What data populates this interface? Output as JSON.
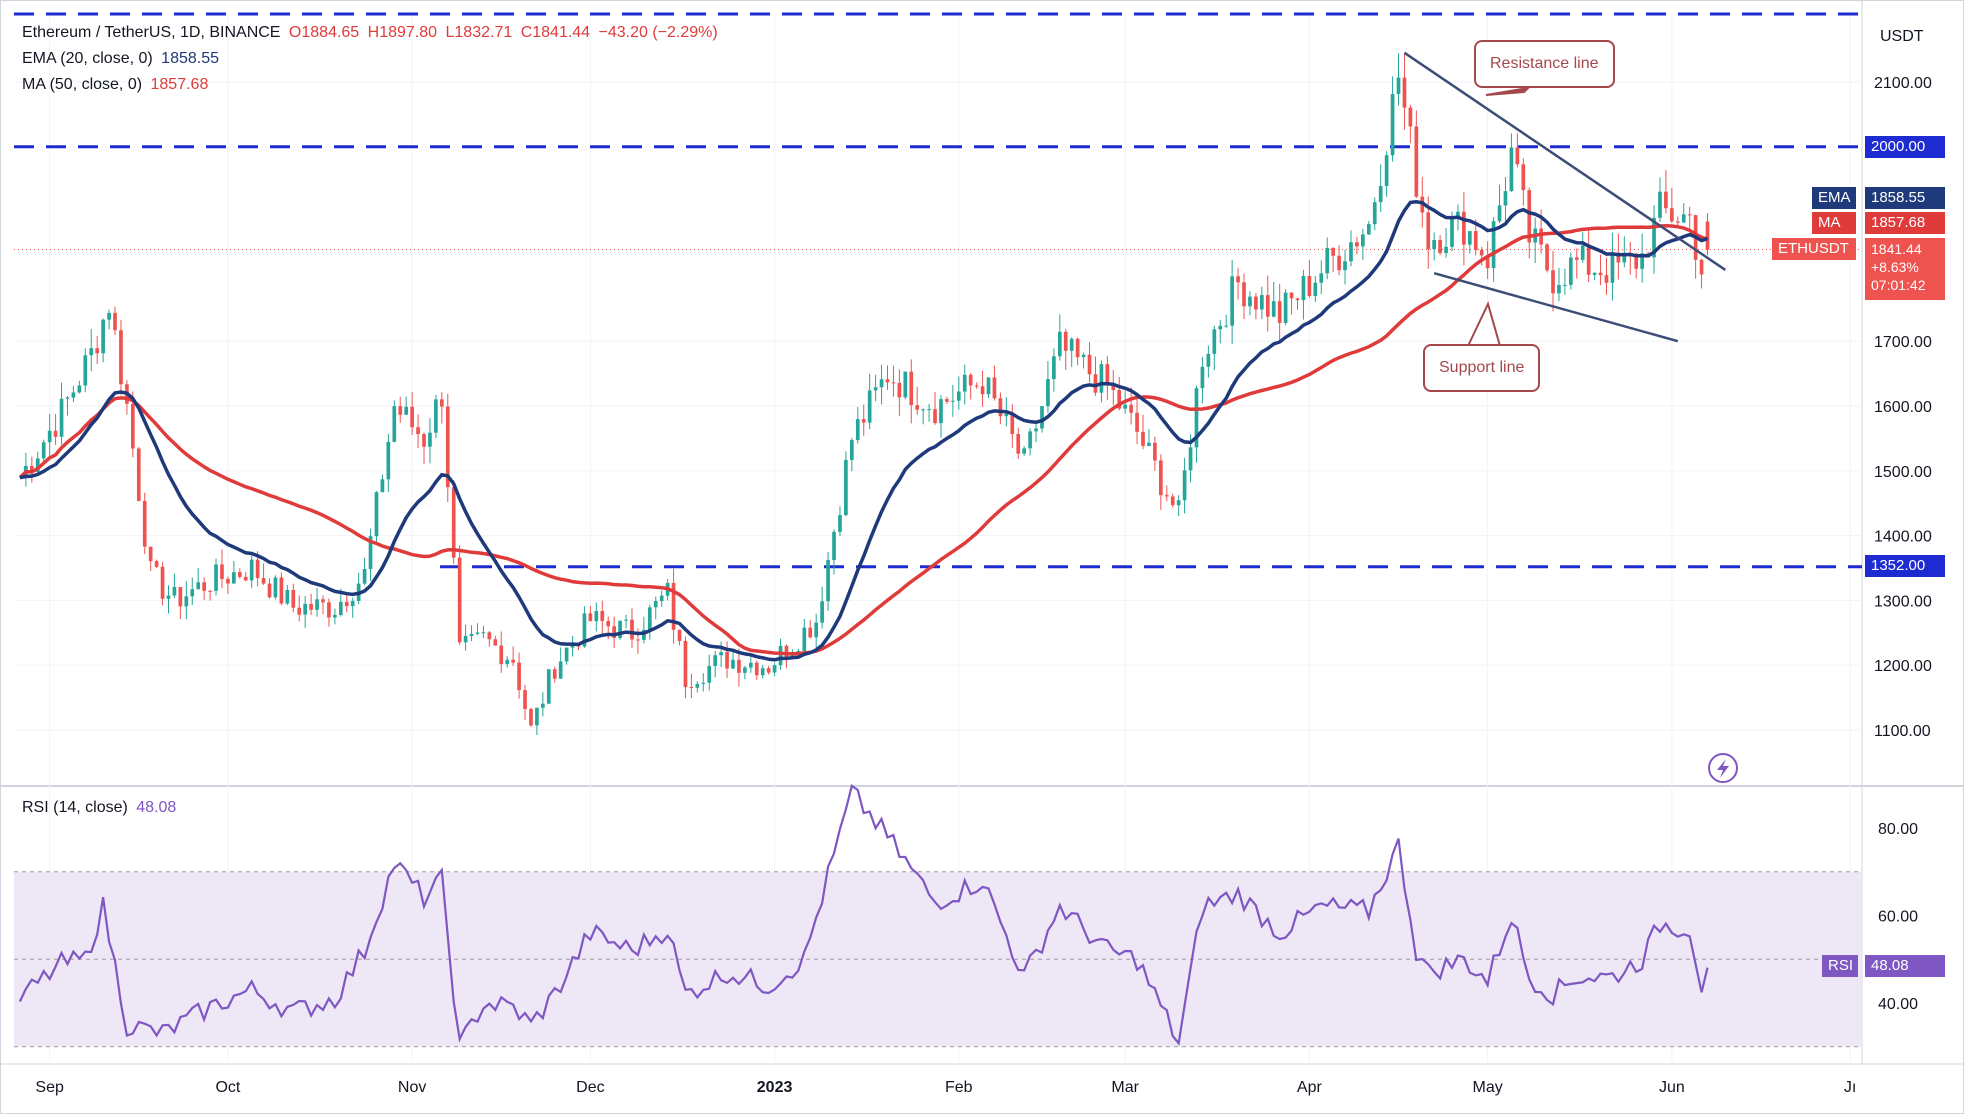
{
  "header": {
    "symbol_line": "Ethereum / TetherUS, 1D, BINANCE",
    "open": "O1884.65",
    "high": "H1897.80",
    "low": "L1832.71",
    "close": "C1841.44",
    "change": "−43.20 (−2.29%)",
    "ema_label": "EMA (20, close, 0)",
    "ema_value": "1858.55",
    "ma_label": "MA (50, close, 0)",
    "ma_value": "1857.68",
    "rsi_label": "RSI (14, close)",
    "rsi_value": "48.08"
  },
  "price_axis": {
    "currency": "USDT",
    "ticks": [
      "2100.00",
      "1700.00",
      "1600.00",
      "1500.00",
      "1400.00",
      "1300.00",
      "1200.00",
      "1100.00"
    ]
  },
  "rsi_axis": {
    "ticks": [
      "80.00",
      "60.00",
      "40.00"
    ]
  },
  "time_axis": {
    "labels": [
      "Sep",
      "Oct",
      "Nov",
      "Dec",
      "2023",
      "Feb",
      "Mar",
      "Apr",
      "May",
      "Jun",
      "Jı"
    ]
  },
  "tags": {
    "resistance_level": "2000.00",
    "support_level": "1352.00",
    "ema_name": "EMA",
    "ema_value": "1858.55",
    "ma_name": "MA",
    "ma_value": "1857.68",
    "symbol": "ETHUSDT",
    "price": "1841.44",
    "pct": "+8.63%",
    "countdown": "07:01:42",
    "rsi_name": "RSI",
    "rsi_value": "48.08"
  },
  "annotations": {
    "resistance": "Resistance line",
    "support": "Support line"
  },
  "colors": {
    "up": "#26a69a",
    "down": "#ef5350",
    "ema": "#1f3a7a",
    "ma": "#e03b3b",
    "level_line": "#1e2bd0",
    "rsi_line": "#7e57c2",
    "rsi_band": "#ede7f6",
    "callout": "#a4484c"
  },
  "chart_data": [
    {
      "type": "candlestick",
      "title": "Ethereum / TetherUS, 1D, BINANCE",
      "ylabel": "USDT",
      "ylim": [
        1000,
        2250
      ],
      "horizontal_levels": [
        2000,
        1352
      ],
      "series_overlays": [
        "EMA (20, close, 0)",
        "MA (50, close, 0)"
      ],
      "last": {
        "open": 1884.65,
        "high": 1897.8,
        "low": 1832.71,
        "close": 1841.44,
        "ema20": 1858.55,
        "ma50": 1857.68
      },
      "trendlines": {
        "resistance": [
          [
            "2023-04-17",
            2145
          ],
          [
            "2023-06-10",
            1810
          ]
        ],
        "support": [
          [
            "2023-04-22",
            1805
          ],
          [
            "2023-06-02",
            1700
          ]
        ]
      },
      "close_path": [
        [
          "2022-08-27",
          1490
        ],
        [
          "2022-09-03",
          1590
        ],
        [
          "2022-09-08",
          1680
        ],
        [
          "2022-09-11",
          1760
        ],
        [
          "2022-09-14",
          1600
        ],
        [
          "2022-09-18",
          1340
        ],
        [
          "2022-09-22",
          1300
        ],
        [
          "2022-09-28",
          1330
        ],
        [
          "2022-10-05",
          1350
        ],
        [
          "2022-10-12",
          1290
        ],
        [
          "2022-10-19",
          1290
        ],
        [
          "2022-10-24",
          1340
        ],
        [
          "2022-10-29",
          1600
        ],
        [
          "2022-11-03",
          1550
        ],
        [
          "2022-11-06",
          1620
        ],
        [
          "2022-11-09",
          1220
        ],
        [
          "2022-11-13",
          1240
        ],
        [
          "2022-11-18",
          1210
        ],
        [
          "2022-11-21",
          1100
        ],
        [
          "2022-11-25",
          1200
        ],
        [
          "2022-12-01",
          1270
        ],
        [
          "2022-12-08",
          1250
        ],
        [
          "2022-12-14",
          1310
        ],
        [
          "2022-12-17",
          1180
        ],
        [
          "2022-12-24",
          1210
        ],
        [
          "2022-12-31",
          1200
        ],
        [
          "2023-01-08",
          1270
        ],
        [
          "2023-01-14",
          1550
        ],
        [
          "2023-01-20",
          1650
        ],
        [
          "2023-01-28",
          1600
        ],
        [
          "2023-02-05",
          1640
        ],
        [
          "2023-02-12",
          1510
        ],
        [
          "2023-02-18",
          1690
        ],
        [
          "2023-02-26",
          1630
        ],
        [
          "2023-03-03",
          1560
        ],
        [
          "2023-03-10",
          1430
        ],
        [
          "2023-03-14",
          1680
        ],
        [
          "2023-03-20",
          1790
        ],
        [
          "2023-03-27",
          1740
        ],
        [
          "2023-04-03",
          1810
        ],
        [
          "2023-04-11",
          1880
        ],
        [
          "2023-04-16",
          2110
        ],
        [
          "2023-04-19",
          1950
        ],
        [
          "2023-04-21",
          1860
        ],
        [
          "2023-04-27",
          1880
        ],
        [
          "2023-05-01",
          1830
        ],
        [
          "2023-05-05",
          1990
        ],
        [
          "2023-05-08",
          1860
        ],
        [
          "2023-05-12",
          1800
        ],
        [
          "2023-05-16",
          1820
        ],
        [
          "2023-05-22",
          1810
        ],
        [
          "2023-05-27",
          1830
        ],
        [
          "2023-05-30",
          1900
        ],
        [
          "2023-06-04",
          1890
        ],
        [
          "2023-06-06",
          1810
        ],
        [
          "2023-06-07",
          1841
        ]
      ]
    },
    {
      "type": "line",
      "title": "RSI (14, close)",
      "ylim": [
        25,
        90
      ],
      "bands": [
        30,
        50,
        70
      ],
      "last": 48.08,
      "series": [
        {
          "name": "RSI",
          "values": [
            [
              "2022-08-27",
              41
            ],
            [
              "2022-09-03",
              49
            ],
            [
              "2022-09-07",
              50
            ],
            [
              "2022-09-10",
              62
            ],
            [
              "2022-09-14",
              35
            ],
            [
              "2022-09-20",
              33
            ],
            [
              "2022-09-28",
              39
            ],
            [
              "2022-10-05",
              43
            ],
            [
              "2022-10-12",
              38
            ],
            [
              "2022-10-19",
              41
            ],
            [
              "2022-10-24",
              52
            ],
            [
              "2022-10-29",
              72
            ],
            [
              "2022-11-03",
              64
            ],
            [
              "2022-11-06",
              68
            ],
            [
              "2022-11-09",
              30
            ],
            [
              "2022-11-13",
              40
            ],
            [
              "2022-11-18",
              39
            ],
            [
              "2022-11-21",
              35
            ],
            [
              "2022-11-25",
              42
            ],
            [
              "2022-12-01",
              56
            ],
            [
              "2022-12-08",
              52
            ],
            [
              "2022-12-14",
              57
            ],
            [
              "2022-12-17",
              42
            ],
            [
              "2022-12-24",
              47
            ],
            [
              "2022-12-31",
              44
            ],
            [
              "2023-01-06",
              50
            ],
            [
              "2023-01-14",
              88
            ],
            [
              "2023-01-20",
              78
            ],
            [
              "2023-01-28",
              63
            ],
            [
              "2023-02-05",
              68
            ],
            [
              "2023-02-12",
              46
            ],
            [
              "2023-02-18",
              62
            ],
            [
              "2023-02-26",
              52
            ],
            [
              "2023-03-03",
              50
            ],
            [
              "2023-03-10",
              31
            ],
            [
              "2023-03-14",
              62
            ],
            [
              "2023-03-20",
              65
            ],
            [
              "2023-03-27",
              56
            ],
            [
              "2023-04-03",
              62
            ],
            [
              "2023-04-11",
              61
            ],
            [
              "2023-04-16",
              76
            ],
            [
              "2023-04-19",
              52
            ],
            [
              "2023-04-21",
              47
            ],
            [
              "2023-04-27",
              50
            ],
            [
              "2023-05-01",
              45
            ],
            [
              "2023-05-05",
              60
            ],
            [
              "2023-05-08",
              46
            ],
            [
              "2023-05-12",
              42
            ],
            [
              "2023-05-16",
              46
            ],
            [
              "2023-05-22",
              46
            ],
            [
              "2023-05-27",
              50
            ],
            [
              "2023-05-30",
              58
            ],
            [
              "2023-06-04",
              57
            ],
            [
              "2023-06-06",
              44
            ],
            [
              "2023-06-07",
              48.08
            ]
          ]
        }
      ]
    }
  ]
}
